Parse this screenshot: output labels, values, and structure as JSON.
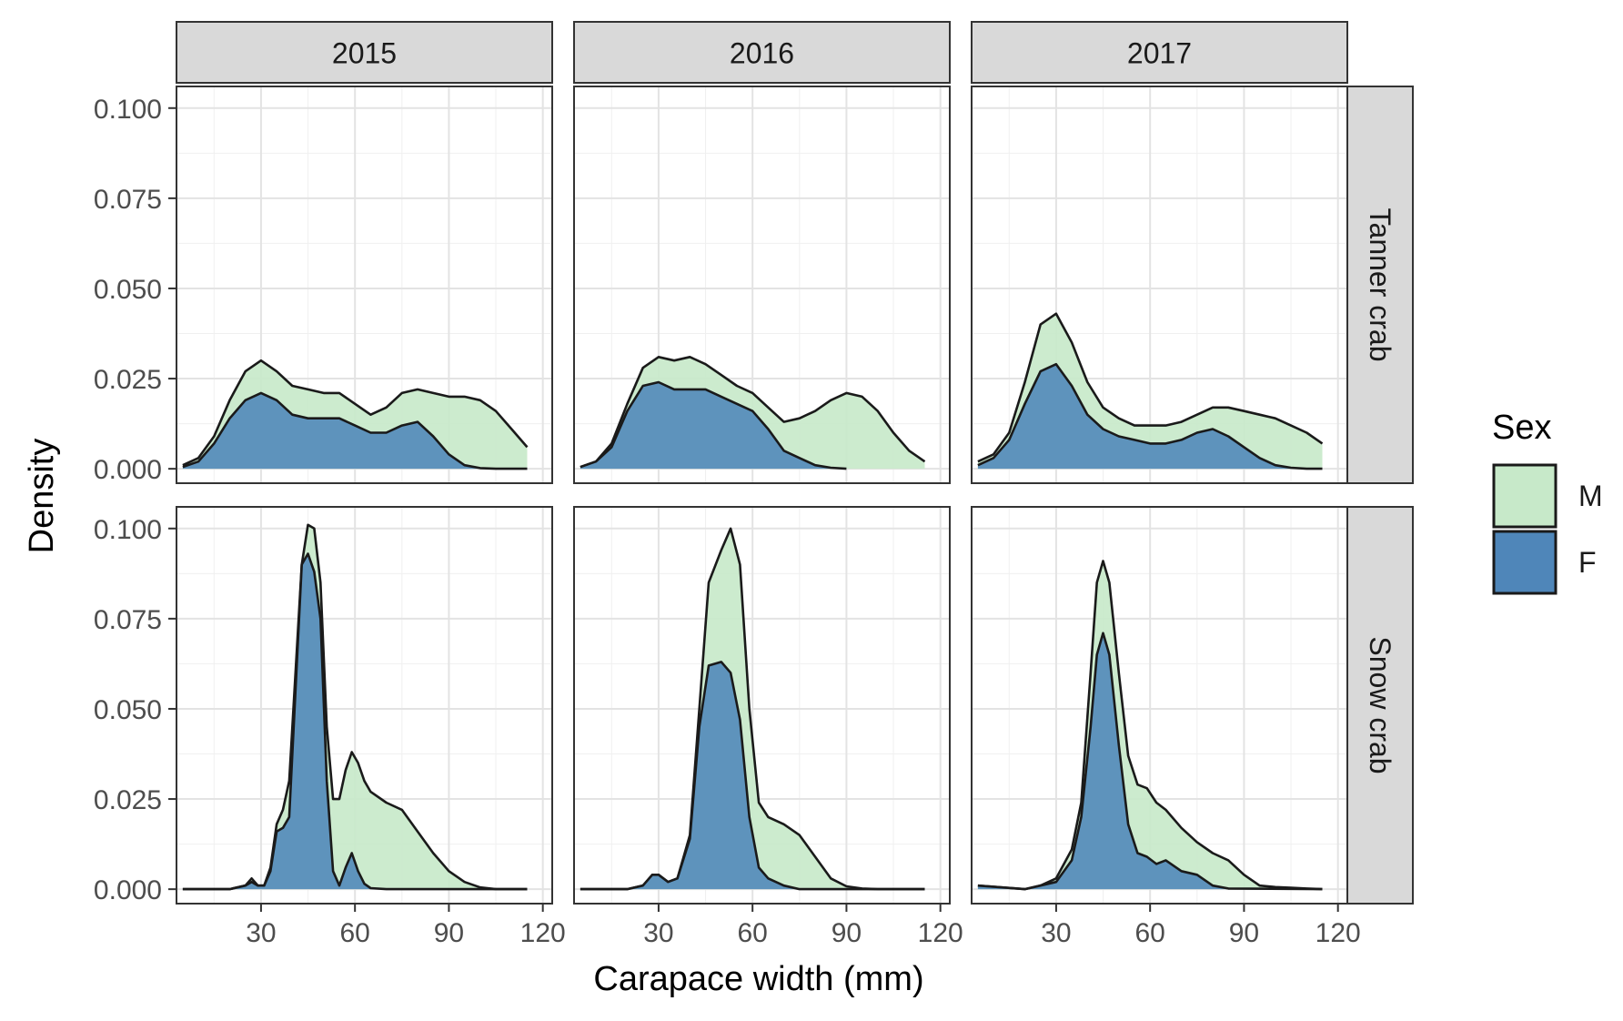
{
  "chart_data": {
    "type": "area",
    "subtype": "faceted-density",
    "xlabel": "Carapace width (mm)",
    "ylabel": "Density",
    "xlim": [
      3,
      123
    ],
    "ylim": [
      -0.004,
      0.106
    ],
    "x_ticks": [
      30,
      60,
      90,
      120
    ],
    "x_tick_labels": [
      "30",
      "60",
      "90",
      "120"
    ],
    "y_ticks": [
      0,
      0.025,
      0.05,
      0.075,
      0.1
    ],
    "y_tick_labels": [
      "0.000",
      "0.025",
      "0.050",
      "0.075",
      "0.100"
    ],
    "grid": true,
    "columns": [
      "2015",
      "2016",
      "2017"
    ],
    "rows": [
      "Tanner crab",
      "Snow crab"
    ],
    "legend": {
      "title": "Sex",
      "position": "right",
      "entries": [
        {
          "label": "M",
          "color": "#c7e9c9"
        },
        {
          "label": "F",
          "color": "#4f86b9"
        }
      ]
    },
    "colors": {
      "M": "#c7e9c9",
      "F": "#4f86b9",
      "outline": "#1a1a1a",
      "strip": "#d9d9d9"
    },
    "panels": [
      {
        "column": "2015",
        "row": "Tanner crab",
        "series": [
          {
            "name": "M",
            "x": [
              5,
              10,
              15,
              20,
              25,
              30,
              35,
              40,
              45,
              50,
              55,
              60,
              65,
              70,
              75,
              80,
              85,
              90,
              95,
              100,
              105,
              110,
              115
            ],
            "y": [
              0.001,
              0.003,
              0.009,
              0.019,
              0.027,
              0.03,
              0.027,
              0.023,
              0.022,
              0.021,
              0.021,
              0.018,
              0.015,
              0.017,
              0.021,
              0.022,
              0.021,
              0.02,
              0.02,
              0.019,
              0.016,
              0.011,
              0.006
            ]
          },
          {
            "name": "F",
            "x": [
              5,
              10,
              15,
              20,
              25,
              30,
              35,
              40,
              45,
              50,
              55,
              60,
              65,
              70,
              75,
              80,
              85,
              90,
              95,
              100,
              105,
              110,
              115
            ],
            "y": [
              0.0005,
              0.002,
              0.007,
              0.014,
              0.019,
              0.021,
              0.019,
              0.015,
              0.014,
              0.014,
              0.014,
              0.012,
              0.01,
              0.01,
              0.012,
              0.013,
              0.009,
              0.004,
              0.001,
              0.0002,
              0,
              0,
              0
            ]
          }
        ]
      },
      {
        "column": "2016",
        "row": "Tanner crab",
        "series": [
          {
            "name": "M",
            "x": [
              5,
              10,
              15,
              20,
              25,
              30,
              35,
              40,
              45,
              50,
              55,
              60,
              65,
              70,
              75,
              80,
              85,
              90,
              95,
              100,
              105,
              110,
              115
            ],
            "y": [
              0.0005,
              0.002,
              0.007,
              0.018,
              0.028,
              0.031,
              0.03,
              0.031,
              0.029,
              0.026,
              0.023,
              0.021,
              0.017,
              0.013,
              0.014,
              0.016,
              0.019,
              0.021,
              0.02,
              0.016,
              0.01,
              0.005,
              0.002
            ]
          },
          {
            "name": "F",
            "x": [
              5,
              10,
              15,
              20,
              25,
              30,
              35,
              40,
              45,
              50,
              55,
              60,
              65,
              70,
              75,
              80,
              85,
              90
            ],
            "y": [
              0.0005,
              0.002,
              0.006,
              0.016,
              0.023,
              0.024,
              0.022,
              0.022,
              0.022,
              0.02,
              0.018,
              0.016,
              0.011,
              0.005,
              0.003,
              0.001,
              0.0003,
              0
            ]
          }
        ]
      },
      {
        "column": "2017",
        "row": "Tanner crab",
        "series": [
          {
            "name": "M",
            "x": [
              5,
              10,
              15,
              20,
              25,
              30,
              35,
              40,
              45,
              50,
              55,
              60,
              65,
              70,
              75,
              80,
              85,
              90,
              95,
              100,
              105,
              110,
              115
            ],
            "y": [
              0.002,
              0.004,
              0.01,
              0.024,
              0.04,
              0.043,
              0.035,
              0.024,
              0.017,
              0.014,
              0.012,
              0.012,
              0.012,
              0.013,
              0.015,
              0.017,
              0.017,
              0.016,
              0.015,
              0.014,
              0.012,
              0.01,
              0.007
            ]
          },
          {
            "name": "F",
            "x": [
              5,
              10,
              15,
              20,
              25,
              30,
              35,
              40,
              45,
              50,
              55,
              60,
              65,
              70,
              75,
              80,
              85,
              90,
              95,
              100,
              105,
              110,
              115
            ],
            "y": [
              0.001,
              0.003,
              0.008,
              0.018,
              0.027,
              0.029,
              0.023,
              0.015,
              0.011,
              0.009,
              0.008,
              0.007,
              0.007,
              0.008,
              0.01,
              0.011,
              0.009,
              0.006,
              0.003,
              0.001,
              0.0003,
              0,
              0
            ]
          }
        ]
      },
      {
        "column": "2015",
        "row": "Snow crab",
        "series": [
          {
            "name": "M",
            "x": [
              5,
              20,
              25,
              27,
              29,
              31,
              33,
              35,
              37,
              39,
              41,
              43,
              45,
              47,
              49,
              51,
              53,
              55,
              57,
              59,
              61,
              63,
              65,
              70,
              75,
              80,
              85,
              90,
              95,
              100,
              105,
              115
            ],
            "y": [
              0,
              0,
              0.001,
              0.003,
              0.001,
              0.001,
              0.006,
              0.018,
              0.022,
              0.03,
              0.06,
              0.09,
              0.101,
              0.1,
              0.085,
              0.045,
              0.025,
              0.025,
              0.033,
              0.038,
              0.035,
              0.03,
              0.027,
              0.024,
              0.022,
              0.016,
              0.01,
              0.005,
              0.002,
              0.0005,
              0,
              0
            ]
          },
          {
            "name": "F",
            "x": [
              5,
              20,
              25,
              27,
              29,
              31,
              33,
              35,
              37,
              39,
              41,
              43,
              45,
              47,
              49,
              51,
              53,
              55,
              57,
              59,
              61,
              63,
              65,
              70,
              75,
              115
            ],
            "y": [
              0,
              0,
              0.001,
              0.002,
              0.001,
              0.001,
              0.005,
              0.016,
              0.017,
              0.02,
              0.055,
              0.09,
              0.093,
              0.088,
              0.075,
              0.03,
              0.005,
              0.001,
              0.006,
              0.01,
              0.005,
              0.0015,
              0.0003,
              0,
              0,
              0
            ]
          }
        ]
      },
      {
        "column": "2016",
        "row": "Snow crab",
        "series": [
          {
            "name": "M",
            "x": [
              5,
              20,
              25,
              28,
              30,
              33,
              36,
              40,
              43,
              46,
              50,
              53,
              56,
              59,
              62,
              65,
              70,
              75,
              80,
              85,
              90,
              95,
              100,
              115
            ],
            "y": [
              0,
              0,
              0.001,
              0.004,
              0.004,
              0.002,
              0.003,
              0.015,
              0.05,
              0.085,
              0.094,
              0.1,
              0.09,
              0.05,
              0.024,
              0.02,
              0.018,
              0.015,
              0.009,
              0.003,
              0.0008,
              0.0002,
              0,
              0
            ]
          },
          {
            "name": "F",
            "x": [
              5,
              20,
              25,
              28,
              30,
              33,
              36,
              40,
              43,
              46,
              50,
              53,
              56,
              59,
              62,
              65,
              70,
              75,
              115
            ],
            "y": [
              0,
              0,
              0.001,
              0.004,
              0.004,
              0.002,
              0.003,
              0.014,
              0.045,
              0.062,
              0.063,
              0.06,
              0.047,
              0.02,
              0.006,
              0.003,
              0.001,
              0,
              0
            ]
          }
        ]
      },
      {
        "column": "2017",
        "row": "Snow crab",
        "series": [
          {
            "name": "M",
            "x": [
              5,
              20,
              25,
              30,
              35,
              38,
              41,
              43,
              45,
              47,
              50,
              53,
              56,
              59,
              62,
              65,
              70,
              75,
              80,
              85,
              90,
              95,
              100,
              105,
              110,
              115
            ],
            "y": [
              0.001,
              0,
              0.001,
              0.003,
              0.011,
              0.024,
              0.06,
              0.085,
              0.091,
              0.085,
              0.06,
              0.037,
              0.029,
              0.028,
              0.024,
              0.022,
              0.017,
              0.013,
              0.01,
              0.008,
              0.004,
              0.001,
              0.0006,
              0.0004,
              0.0002,
              0
            ]
          },
          {
            "name": "F",
            "x": [
              5,
              20,
              25,
              30,
              35,
              38,
              41,
              43,
              45,
              47,
              50,
              53,
              56,
              59,
              62,
              65,
              70,
              75,
              80,
              85,
              115
            ],
            "y": [
              0.001,
              0,
              0.001,
              0.002,
              0.008,
              0.02,
              0.045,
              0.065,
              0.071,
              0.065,
              0.04,
              0.018,
              0.01,
              0.009,
              0.007,
              0.008,
              0.005,
              0.004,
              0.001,
              0.0002,
              0
            ]
          }
        ]
      }
    ]
  }
}
